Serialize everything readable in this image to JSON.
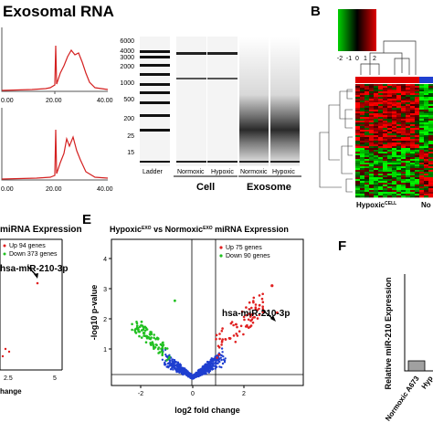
{
  "top": {
    "exosomal_title": "Exosomal RNA",
    "panel_b_letter": "B",
    "trace_axis_ticks": [
      "0.00",
      "20.00",
      "40.00"
    ],
    "trace_axis_ticks_lower": [
      "0.00",
      "20.00",
      "40.00"
    ],
    "ladder_sizes": [
      "6000",
      "4000",
      "3000",
      "2000",
      "1000",
      "500",
      "200",
      "25",
      "15"
    ],
    "gel_lanes": [
      "Ladder",
      "Normoxic",
      "Hypoxic",
      "Normoxic",
      "Hypoxic"
    ],
    "group_cell": "Cell",
    "group_exosome": "Exosome",
    "heatmap_scale_ticks": [
      "-2",
      "-1",
      "0",
      "1",
      "2"
    ],
    "heatmap_col_label_1": "Hypoxic",
    "heatmap_col_label_1_sup": "CELL",
    "heatmap_col_label_2": "No",
    "colors": {
      "trace": "#d42020",
      "heat_red": "#e00000",
      "heat_blue": "#1f3fd0",
      "heat_green": "#00c000"
    }
  },
  "panel_d": {
    "title_fragment": "miRNA Expression",
    "legend_up": "Up 94 genes",
    "legend_down": "Down 373 genes",
    "highlight_label": "hsa-miR-210-3p",
    "xlabel_fragment": "hange",
    "x_ticks": [
      "2.5",
      "5"
    ]
  },
  "panel_e": {
    "letter": "E",
    "title_prefix": "Hypoxic",
    "title_sup_1": "EXO",
    "title_mid": " vs Normoxic",
    "title_sup_2": "EXO",
    "title_suffix": " miRNA Expression",
    "legend_up": "Up 75 genes",
    "legend_down": "Down 90 genes",
    "highlight_label": "hsa-miR-210-3p",
    "xlabel": "log2 fold change",
    "ylabel": "-log10 p-value",
    "x_ticks": [
      "-2",
      "0",
      "2"
    ],
    "y_ticks": [
      "1",
      "2",
      "3",
      "4"
    ],
    "colors": {
      "up": "#e02020",
      "down": "#20c020",
      "ns": "#1f3fd0"
    }
  },
  "panel_f": {
    "letter": "F",
    "ylabel": "Relative miR-210 Expression",
    "categories": [
      "Normoxic A673",
      "Hyp"
    ],
    "bar_color": "#a0a0a0"
  }
}
